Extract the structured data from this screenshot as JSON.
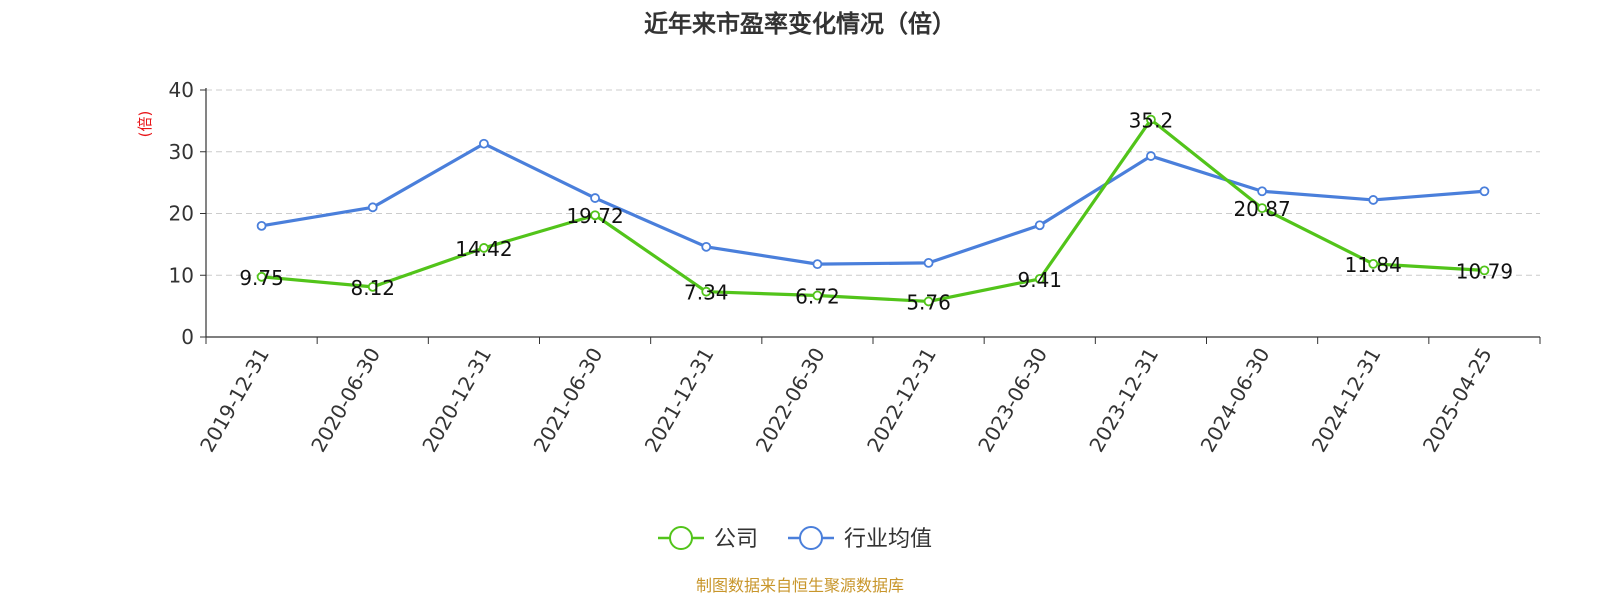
{
  "chart_data": {
    "type": "line",
    "title": "近年来市盈率变化情况（倍）",
    "ylabel": "(倍)",
    "categories": [
      "2019-12-31",
      "2020-06-30",
      "2020-12-31",
      "2021-06-30",
      "2021-12-31",
      "2022-06-30",
      "2022-12-31",
      "2023-06-30",
      "2023-12-31",
      "2024-06-30",
      "2024-12-31",
      "2025-04-25"
    ],
    "ylim": [
      0,
      40
    ],
    "yticks": [
      "0",
      "10",
      "20",
      "30",
      "40"
    ],
    "grid": true,
    "legend_position": "bottom-center",
    "series": [
      {
        "name": "公司",
        "color": "#52c41a",
        "values": [
          9.75,
          8.12,
          14.42,
          19.72,
          7.34,
          6.72,
          5.76,
          9.41,
          35.2,
          20.87,
          11.84,
          10.79
        ],
        "labels": [
          "9.75",
          "8.12",
          "14.42",
          "19.72",
          "7.34",
          "6.72",
          "5.76",
          "9.41",
          "35.2",
          "20.87",
          "11.84",
          "10.79"
        ]
      },
      {
        "name": "行业均值",
        "color": "#4a7fdb",
        "values": [
          18.0,
          21.0,
          31.3,
          22.5,
          14.6,
          11.8,
          12.0,
          18.1,
          29.3,
          23.6,
          22.2,
          23.6
        ]
      }
    ]
  },
  "source": {
    "text": "制图数据来自恒生聚源数据库",
    "color": "#c8962b"
  }
}
